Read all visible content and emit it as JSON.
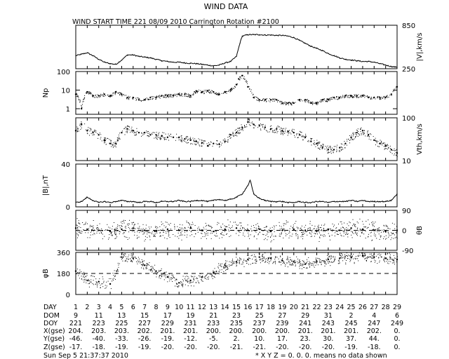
{
  "title": "WIND DATA",
  "subtitle": "WIND START TIME 221 08/09 2010 Carrington Rotation #2100",
  "footer": {
    "timestamp": "Sun Sep  5 21:37:37 2010",
    "note": "* X Y Z = 0. 0. 0. means no data shown"
  },
  "chart_data": [
    {
      "type": "line",
      "panel": "speed",
      "ylabel": "|V|,km/s",
      "yaxis_side": "right",
      "ylim": [
        250,
        850
      ],
      "yticks": [
        "850",
        "250"
      ],
      "x_range_day": [
        1,
        29
      ],
      "series": [
        {
          "x": [
            1,
            1.5,
            2,
            2.5,
            3,
            3.5,
            4,
            4.5,
            5,
            5.5,
            6,
            6.5,
            7,
            7.5,
            8,
            8.5,
            9,
            9.5,
            10,
            10.5,
            11,
            11.5,
            12,
            12.5,
            13,
            13.5,
            14,
            14.5,
            15,
            15.3,
            15.5,
            16,
            16.5,
            17,
            17.5,
            18,
            18.5,
            19,
            19.5,
            20,
            20.5,
            21,
            21.5,
            22,
            22.5,
            23,
            23.5,
            24,
            24.5,
            25,
            25.5,
            26,
            26.5,
            27,
            27.5,
            28,
            28.5,
            29
          ],
          "y": [
            430,
            450,
            470,
            430,
            380,
            340,
            320,
            310,
            370,
            440,
            440,
            420,
            410,
            400,
            380,
            360,
            350,
            340,
            340,
            330,
            325,
            320,
            310,
            300,
            290,
            300,
            330,
            350,
            420,
            600,
            700,
            720,
            720,
            720,
            715,
            715,
            710,
            710,
            700,
            680,
            640,
            600,
            560,
            530,
            500,
            460,
            430,
            400,
            380,
            370,
            360,
            350,
            350,
            340,
            320,
            300,
            280,
            270
          ]
        }
      ]
    },
    {
      "type": "scatter",
      "panel": "density",
      "ylabel": "Np",
      "yaxis_side": "left",
      "yscale": "log",
      "ylim": [
        0.5,
        100
      ],
      "yticks": [
        "100",
        "10",
        "1"
      ],
      "x_range_day": [
        1,
        29
      ],
      "series": [
        {
          "x": [
            1,
            1.5,
            2,
            2.5,
            3,
            3.5,
            4,
            4.5,
            5,
            5.5,
            6,
            6.5,
            7,
            7.5,
            8,
            8.5,
            9,
            9.5,
            10,
            10.5,
            11,
            11.5,
            12,
            12.5,
            13,
            13.5,
            14,
            14.5,
            15,
            15.2,
            15.5,
            16,
            16.5,
            17,
            17.5,
            18,
            18.5,
            19,
            19.5,
            20,
            20.5,
            21,
            21.5,
            22,
            22.5,
            23,
            23.5,
            24,
            24.5,
            25,
            25.5,
            26,
            26.5,
            27,
            27.5,
            28,
            28.5,
            29
          ],
          "y": [
            6,
            1,
            8,
            5,
            5,
            6,
            5,
            8,
            6,
            4,
            4,
            3,
            3,
            4,
            4,
            5,
            5,
            5,
            6,
            6,
            5,
            9,
            8,
            9,
            8,
            6,
            8,
            10,
            20,
            40,
            60,
            15,
            4,
            3,
            3,
            3,
            3,
            2,
            2,
            2,
            3,
            3,
            2,
            2,
            3,
            3,
            4,
            4,
            5,
            5,
            5,
            5,
            4,
            4,
            4,
            4,
            6,
            15
          ]
        }
      ]
    },
    {
      "type": "scatter",
      "panel": "thermal-speed",
      "ylabel": "Vth,km/s",
      "yaxis_side": "right",
      "yscale": "log",
      "ylim": [
        10,
        100
      ],
      "yticks": [
        "100",
        "10"
      ],
      "x_range_day": [
        1,
        29
      ],
      "series": [
        {
          "x": [
            1,
            1.5,
            2,
            2.5,
            3,
            3.5,
            4,
            4.5,
            5,
            5.5,
            6,
            6.5,
            7,
            7.5,
            8,
            8.5,
            9,
            9.5,
            10,
            10.5,
            11,
            11.5,
            12,
            12.5,
            13,
            13.5,
            14,
            14.5,
            15,
            15.5,
            16,
            16.5,
            17,
            17.5,
            18,
            18.5,
            19,
            19.5,
            20,
            20.5,
            21,
            21.5,
            22,
            22.5,
            23,
            23.5,
            24,
            24.5,
            25,
            25.5,
            26,
            26.5,
            27,
            27.5,
            28,
            28.5,
            29
          ],
          "y": [
            50,
            70,
            50,
            45,
            40,
            30,
            25,
            25,
            45,
            55,
            50,
            45,
            45,
            40,
            40,
            38,
            35,
            35,
            35,
            32,
            30,
            28,
            26,
            22,
            25,
            24,
            28,
            40,
            45,
            60,
            80,
            70,
            65,
            60,
            55,
            55,
            50,
            48,
            45,
            40,
            35,
            28,
            25,
            20,
            18,
            18,
            20,
            25,
            35,
            45,
            50,
            40,
            30,
            25,
            22,
            18,
            15
          ]
        }
      ]
    },
    {
      "type": "line",
      "panel": "field-magnitude",
      "ylabel": "|B|,nT",
      "yaxis_side": "left",
      "ylim": [
        0,
        40
      ],
      "yticks": [
        "40",
        "0"
      ],
      "x_range_day": [
        1,
        29
      ],
      "series": [
        {
          "x": [
            1,
            1.5,
            2,
            2.5,
            3,
            3.5,
            4,
            4.5,
            5,
            5.5,
            6,
            6.5,
            7,
            7.5,
            8,
            8.5,
            9,
            9.5,
            10,
            10.5,
            11,
            11.5,
            12,
            12.5,
            13,
            13.5,
            14,
            14.5,
            15,
            15.5,
            16,
            16.2,
            16.5,
            17,
            17.5,
            18,
            18.5,
            19,
            19.5,
            20,
            20.5,
            21,
            21.5,
            22,
            22.5,
            23,
            23.5,
            24,
            24.5,
            25,
            25.5,
            26,
            26.5,
            27,
            27.5,
            28,
            28.5,
            29
          ],
          "y": [
            4,
            5,
            9,
            6,
            4,
            5,
            4,
            5,
            6,
            5,
            5,
            4,
            5,
            5,
            4,
            5,
            5,
            5,
            6,
            5,
            5,
            6,
            6,
            5,
            6,
            7,
            6,
            7,
            9,
            12,
            20,
            25,
            12,
            8,
            6,
            5,
            5,
            5,
            4,
            4,
            5,
            4,
            4,
            5,
            5,
            4,
            5,
            5,
            5,
            6,
            5,
            6,
            5,
            5,
            5,
            5,
            6,
            12
          ]
        }
      ]
    },
    {
      "type": "scatter",
      "panel": "theta-b",
      "ylabel": "θB",
      "yaxis_side": "right",
      "ylim": [
        -90,
        90
      ],
      "yticks": [
        "90",
        "0",
        "-90"
      ],
      "x_range_day": [
        1,
        29
      ],
      "reference_line": 0,
      "spread": 35,
      "series": [
        {
          "x": [
            1,
            2,
            3,
            4,
            5,
            6,
            7,
            8,
            9,
            10,
            11,
            12,
            13,
            14,
            15,
            16,
            17,
            18,
            19,
            20,
            21,
            22,
            23,
            24,
            25,
            26,
            27,
            28,
            29
          ],
          "y": [
            10,
            5,
            0,
            -5,
            5,
            10,
            0,
            -5,
            5,
            0,
            10,
            0,
            -5,
            5,
            10,
            0,
            5,
            -5,
            0,
            5,
            0,
            -5,
            5,
            0,
            10,
            5,
            0,
            -5,
            0
          ]
        }
      ]
    },
    {
      "type": "scatter",
      "panel": "phi-b",
      "ylabel": "φB",
      "yaxis_side": "left",
      "ylim": [
        0,
        360
      ],
      "yticks": [
        "360",
        "180",
        "0"
      ],
      "x_range_day": [
        1,
        29
      ],
      "reference_line": 180,
      "spread": 40,
      "series": [
        {
          "x": [
            1,
            2,
            3,
            4,
            5,
            6,
            7,
            8,
            9,
            10,
            11,
            12,
            13,
            14,
            15,
            16,
            17,
            18,
            19,
            20,
            21,
            22,
            23,
            24,
            25,
            26,
            27,
            28,
            29
          ],
          "y": [
            200,
            120,
            110,
            90,
            320,
            310,
            250,
            200,
            150,
            100,
            120,
            150,
            190,
            250,
            280,
            300,
            320,
            310,
            290,
            280,
            260,
            280,
            300,
            310,
            320,
            330,
            320,
            310,
            300
          ]
        }
      ]
    }
  ],
  "ephemeris": {
    "labels": [
      "DAY",
      "DOM",
      "DOY",
      "X(gse)",
      "Y(gse)",
      "Z(gse)"
    ],
    "day": [
      "1",
      "2",
      "3",
      "4",
      "5",
      "6",
      "7",
      "8",
      "9",
      "10",
      "11",
      "12",
      "13",
      "14",
      "15",
      "16",
      "17",
      "18",
      "19",
      "20",
      "21",
      "22",
      "23",
      "24",
      "25",
      "26",
      "27",
      "28",
      "29"
    ],
    "dom": [
      "9",
      "11",
      "13",
      "15",
      "17",
      "19",
      "21",
      "23",
      "25",
      "27",
      "29",
      "31",
      "2",
      "4",
      "6"
    ],
    "doy": [
      "221",
      "223",
      "225",
      "227",
      "229",
      "231",
      "233",
      "235",
      "237",
      "239",
      "241",
      "243",
      "245",
      "247",
      "249"
    ],
    "x_gse": [
      "204.",
      "203.",
      "203.",
      "202.",
      "201.",
      "201.",
      "200.",
      "200.",
      "200.",
      "200.",
      "201.",
      "201.",
      "201.",
      "202.",
      "0."
    ],
    "y_gse": [
      "-46.",
      "-40.",
      "-33.",
      "-26.",
      "-19.",
      "-12.",
      "-5.",
      "2.",
      "10.",
      "17.",
      "23.",
      "30.",
      "37.",
      "44.",
      "0."
    ],
    "z_gse": [
      "-17.",
      "-18.",
      "-19.",
      "-19.",
      "-20.",
      "-20.",
      "-20.",
      "-21.",
      "-21.",
      "-20.",
      "-20.",
      "-20.",
      "-19.",
      "-18.",
      "0."
    ]
  }
}
